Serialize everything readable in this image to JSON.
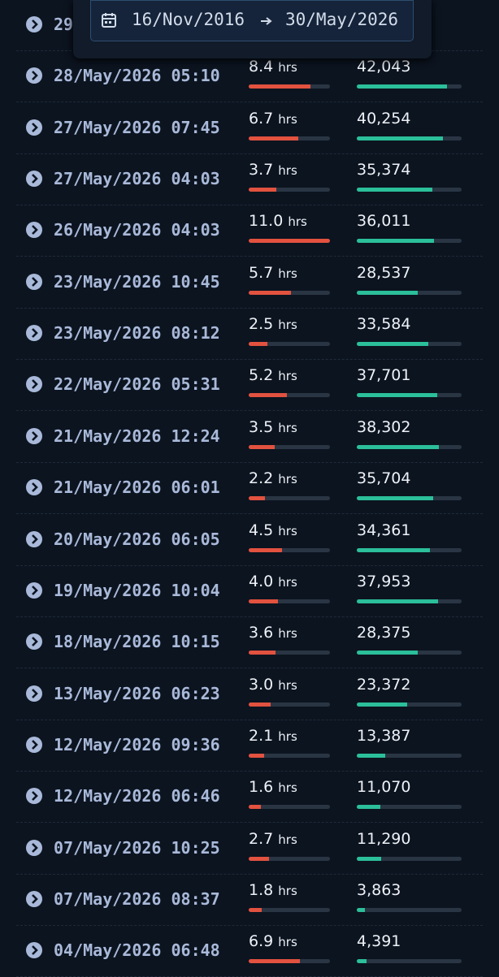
{
  "date_range": {
    "from": "16/Nov/2016",
    "to": "30/May/2026"
  },
  "hours_unit": "hrs",
  "hours_range": [
    0,
    11
  ],
  "steps_range": [
    0,
    49000
  ],
  "rows": [
    {
      "date": "29"
    },
    {
      "date": "28/May/2026 05:10",
      "hours": 8.4,
      "steps": {
        "value": 42043,
        "label": "42,043"
      }
    },
    {
      "date": "27/May/2026 07:45",
      "hours": 6.7,
      "steps": {
        "value": 40254,
        "label": "40,254"
      }
    },
    {
      "date": "27/May/2026 04:03",
      "hours": 3.7,
      "steps": {
        "value": 35374,
        "label": "35,374"
      }
    },
    {
      "date": "26/May/2026 04:03",
      "hours": 11.0,
      "hours_label": "11.0",
      "steps": {
        "value": 36011,
        "label": "36,011"
      }
    },
    {
      "date": "23/May/2026 10:45",
      "hours": 5.7,
      "steps": {
        "value": 28537,
        "label": "28,537"
      }
    },
    {
      "date": "23/May/2026 08:12",
      "hours": 2.5,
      "steps": {
        "value": 33584,
        "label": "33,584"
      }
    },
    {
      "date": "22/May/2026 05:31",
      "hours": 5.2,
      "steps": {
        "value": 37701,
        "label": "37,701"
      }
    },
    {
      "date": "21/May/2026 12:24",
      "hours": 3.5,
      "steps": {
        "value": 38302,
        "label": "38,302"
      }
    },
    {
      "date": "21/May/2026 06:01",
      "hours": 2.2,
      "steps": {
        "value": 35704,
        "label": "35,704"
      }
    },
    {
      "date": "20/May/2026 06:05",
      "hours": 4.5,
      "steps": {
        "value": 34361,
        "label": "34,361"
      }
    },
    {
      "date": "19/May/2026 10:04",
      "hours": 4.0,
      "hours_label": "4.0",
      "steps": {
        "value": 37953,
        "label": "37,953"
      }
    },
    {
      "date": "18/May/2026 10:15",
      "hours": 3.6,
      "steps": {
        "value": 28375,
        "label": "28,375"
      }
    },
    {
      "date": "13/May/2026 06:23",
      "hours": 3.0,
      "hours_label": "3.0",
      "steps": {
        "value": 23372,
        "label": "23,372"
      }
    },
    {
      "date": "12/May/2026 09:36",
      "hours": 2.1,
      "steps": {
        "value": 13387,
        "label": "13,387"
      }
    },
    {
      "date": "12/May/2026 06:46",
      "hours": 1.6,
      "steps": {
        "value": 11070,
        "label": "11,070"
      }
    },
    {
      "date": "07/May/2026 10:25",
      "hours": 2.7,
      "steps": {
        "value": 11290,
        "label": "11,290"
      }
    },
    {
      "date": "07/May/2026 08:37",
      "hours": 1.8,
      "steps": {
        "value": 3863,
        "label": "3,863"
      }
    },
    {
      "date": "04/May/2026 06:48",
      "hours": 6.9,
      "steps": {
        "value": 4391,
        "label": "4,391"
      }
    }
  ]
}
